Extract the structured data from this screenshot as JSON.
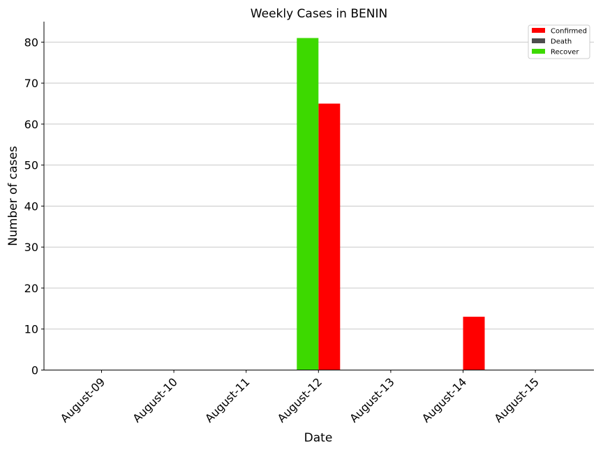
{
  "chart_data": {
    "type": "bar",
    "title": "Weekly Cases in BENIN",
    "xlabel": "Date",
    "ylabel": "Number of cases",
    "categories": [
      "August-09",
      "August-10",
      "August-11",
      "August-12",
      "August-13",
      "August-14",
      "August-15"
    ],
    "series": [
      {
        "name": "Confirmed",
        "color": "#ff0000",
        "values": [
          0,
          0,
          0,
          65,
          0,
          13,
          0
        ]
      },
      {
        "name": "Death",
        "color": "#4d4d4d",
        "values": [
          0,
          0,
          0,
          0,
          0,
          0,
          0
        ]
      },
      {
        "name": "Recover",
        "color": "#3dd900",
        "values": [
          0,
          0,
          0,
          81,
          0,
          0,
          0
        ]
      }
    ],
    "ylim": [
      0,
      85
    ],
    "yticks": [
      0,
      10,
      20,
      30,
      40,
      50,
      60,
      70,
      80
    ],
    "grid": "horizontal",
    "legend_position": "top-right"
  }
}
